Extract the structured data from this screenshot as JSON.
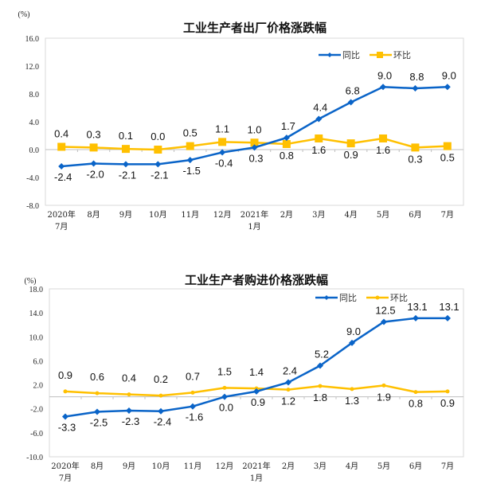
{
  "chart_data": [
    {
      "type": "line",
      "title": "工业生产者出厂价格涨跌幅",
      "ylabel": "(%)",
      "ylim": [
        -8,
        16
      ],
      "yticks": [
        "16.0",
        "12.0",
        "8.0",
        "4.0",
        "0.0",
        "-4.0",
        "-8.0"
      ],
      "categories": [
        [
          "2020年",
          "7月"
        ],
        [
          "8月"
        ],
        [
          "9月"
        ],
        [
          "10月"
        ],
        [
          "11月"
        ],
        [
          "12月"
        ],
        [
          "2021年",
          "1月"
        ],
        [
          "2月"
        ],
        [
          "3月"
        ],
        [
          "4月"
        ],
        [
          "5月"
        ],
        [
          "6月"
        ],
        [
          "7月"
        ]
      ],
      "legend_position": "top-right",
      "series": [
        {
          "name": "同比",
          "color": "#0a64c8",
          "marker": "diamond",
          "values": [
            -2.4,
            -2.0,
            -2.1,
            -2.1,
            -1.5,
            -0.4,
            0.3,
            1.7,
            4.4,
            6.8,
            9.0,
            8.8,
            9.0
          ]
        },
        {
          "name": "环比",
          "color": "#ffc000",
          "marker": "square",
          "values": [
            0.4,
            0.3,
            0.1,
            0.0,
            0.5,
            1.1,
            1.0,
            0.8,
            1.6,
            0.9,
            1.6,
            0.3,
            0.5
          ]
        }
      ]
    },
    {
      "type": "line",
      "title": "工业生产者购进价格涨跌幅",
      "ylabel": "(%)",
      "ylim": [
        -10,
        18
      ],
      "yticks": [
        "18.0",
        "14.0",
        "10.0",
        "6.0",
        "2.0",
        "-2.0",
        "-6.0",
        "-10.0"
      ],
      "categories": [
        [
          "2020年",
          "7月"
        ],
        [
          "8月"
        ],
        [
          "9月"
        ],
        [
          "10月"
        ],
        [
          "11月"
        ],
        [
          "12月"
        ],
        [
          "2021年",
          "1月"
        ],
        [
          "2月"
        ],
        [
          "3月"
        ],
        [
          "4月"
        ],
        [
          "5月"
        ],
        [
          "6月"
        ],
        [
          "7月"
        ]
      ],
      "legend_position": "top-right",
      "series": [
        {
          "name": "同比",
          "color": "#0a64c8",
          "marker": "diamond",
          "values": [
            -3.3,
            -2.5,
            -2.3,
            -2.4,
            -1.6,
            0.0,
            0.9,
            2.4,
            5.2,
            9.0,
            12.5,
            13.1,
            13.1
          ]
        },
        {
          "name": "环比",
          "color": "#ffc000",
          "marker": "dot",
          "values": [
            0.9,
            0.6,
            0.4,
            0.2,
            0.7,
            1.5,
            1.4,
            1.2,
            1.8,
            1.3,
            1.9,
            0.8,
            0.9
          ]
        }
      ]
    }
  ]
}
